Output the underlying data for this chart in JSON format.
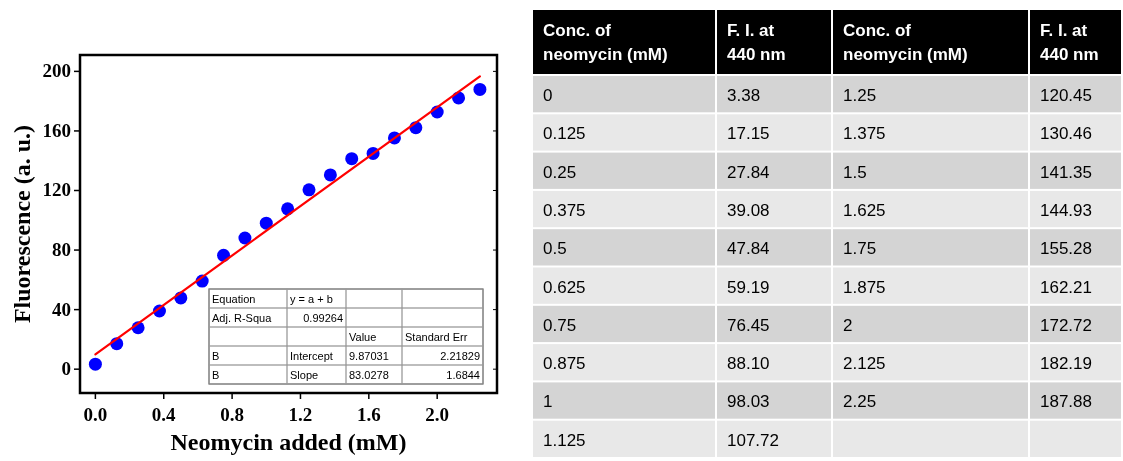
{
  "chart_data": {
    "type": "scatter",
    "xlabel": "Neomycin added (mM)",
    "ylabel": "Fluorescence (a. u.)",
    "xlim": [
      -0.09,
      2.35
    ],
    "ylim": [
      -16,
      211
    ],
    "xticks": [
      {
        "value": 0,
        "label": "0.0"
      },
      {
        "value": 0.4,
        "label": "0.4"
      },
      {
        "value": 0.8,
        "label": "0.8"
      },
      {
        "value": 1.2,
        "label": "1.2"
      },
      {
        "value": 1.6,
        "label": "1.6"
      },
      {
        "value": 2,
        "label": "2.0"
      }
    ],
    "yticks": [
      0,
      40,
      80,
      120,
      160,
      200
    ],
    "series": [
      {
        "color": "#0000ff",
        "marker": "circle",
        "x": [
          0,
          0.125,
          0.25,
          0.375,
          0.5,
          0.625,
          0.75,
          0.875,
          1,
          1.125,
          1.25,
          1.375,
          1.5,
          1.625,
          1.75,
          1.875,
          2,
          2.125,
          2.25
        ],
        "values": [
          3.38,
          17.15,
          27.84,
          39.08,
          47.84,
          59.19,
          76.45,
          88.1,
          98.03,
          107.72,
          120.45,
          130.46,
          141.35,
          144.93,
          155.28,
          162.21,
          172.72,
          182.19,
          187.88
        ]
      },
      {
        "type": "line",
        "color": "#ff0000",
        "x": [
          0,
          2.25
        ],
        "values": [
          9.9,
          196.7
        ]
      }
    ],
    "annotations": [
      "Equation",
      "y = a + b",
      "Adj. R-Squa",
      "0.99264",
      "Value",
      "Standard Err",
      "B",
      "Intercept",
      "9.87031",
      "2.21829",
      "B",
      "Slope",
      "83.0278",
      "1.6844",
      "Conc. of neomycin (mM)",
      "F. I. at 440 nm",
      "Conc. of neomycin (mM)",
      "F. I. at 440 nm",
      "0",
      "3.38",
      "1.25",
      "120.45",
      "0.125",
      "17.15",
      "1.375",
      "130.46",
      "0.25",
      "27.84",
      "1.5",
      "141.35",
      "0.375",
      "39.08",
      "1.625",
      "144.93",
      "0.5",
      "47.84",
      "1.75",
      "155.28",
      "0.625",
      "59.19",
      "1.875",
      "162.21",
      "0.75",
      "76.45",
      "2",
      "172.72",
      "0.875",
      "88.10",
      "2.125",
      "182.19",
      "1",
      "98.03",
      "2.25",
      "187.88",
      "1.125",
      "107.72"
    ]
  }
}
